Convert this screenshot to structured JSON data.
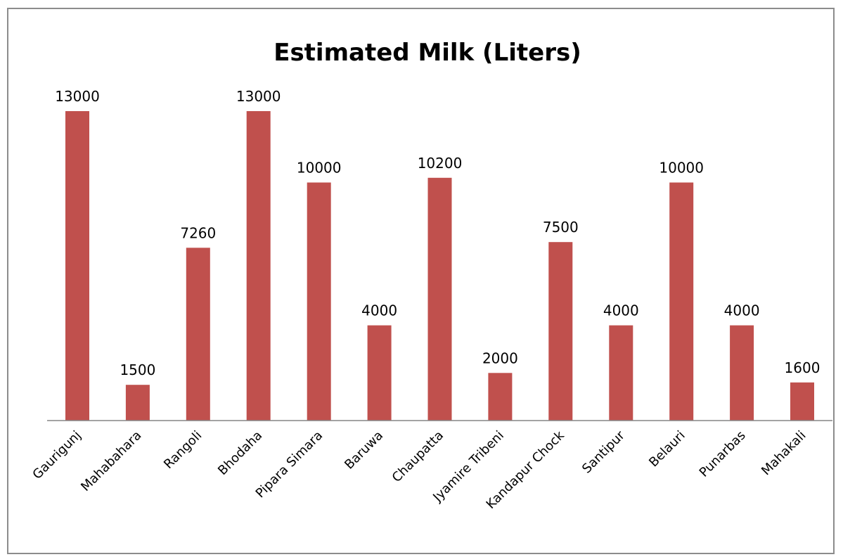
{
  "chart_data": {
    "type": "bar",
    "title": "Estimated Milk (Liters)",
    "xlabel": "",
    "ylabel": "",
    "categories": [
      "Gaurigunj",
      "Mahabahara",
      "Rangoli",
      "Bhodaha",
      "Pipara Simara",
      "Baruwa",
      "Chaupatta",
      "Jyamire Tribeni",
      "Kandapur Chock",
      "Santipur",
      "Belauri",
      "Punarbas",
      "Mahakali"
    ],
    "values": [
      13000,
      1500,
      7260,
      13000,
      10000,
      4000,
      10200,
      2000,
      7500,
      4000,
      10000,
      4000,
      1600
    ],
    "ylim": [
      0,
      13000
    ],
    "bar_color": "#c0504d",
    "grid": false,
    "legend": "none",
    "data_labels": true
  }
}
